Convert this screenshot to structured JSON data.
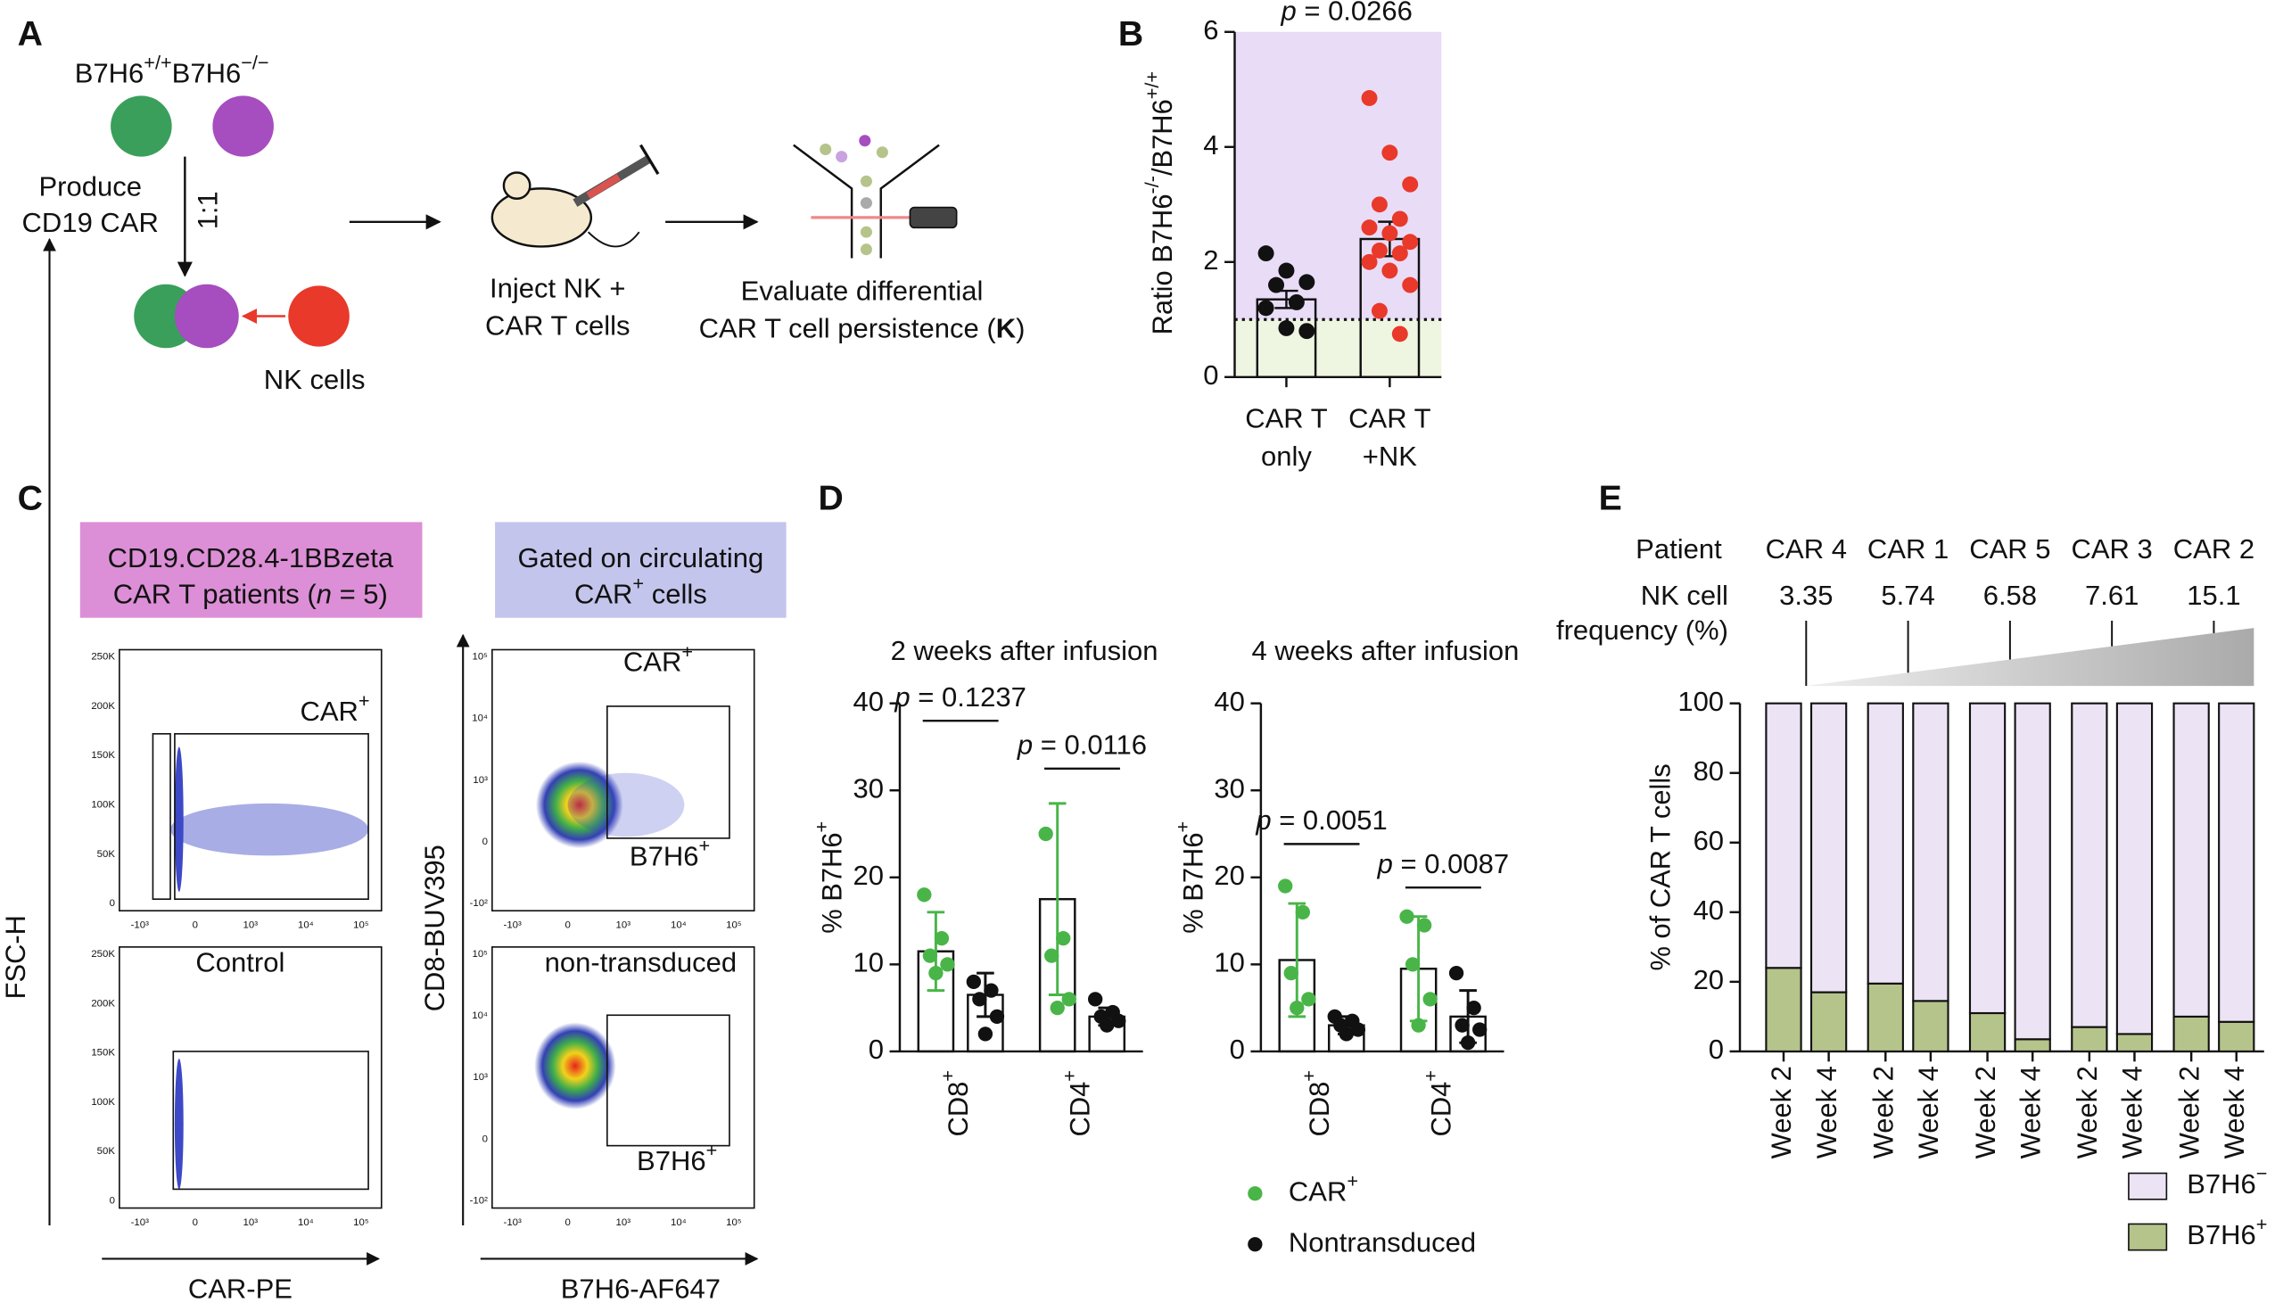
{
  "panel_labels": [
    "A",
    "B",
    "C",
    "D",
    "E"
  ],
  "diagram": {
    "genotypes": [
      {
        "t": "B7H6"
      },
      {
        "t": "+/+",
        "sup": true
      },
      {
        "t": "B7H6"
      },
      {
        "t": "−/−",
        "sup": true
      }
    ],
    "produce": [
      "Produce",
      "CD19 CAR"
    ],
    "ratio": "1:1",
    "nk": "NK cells",
    "inject": [
      "Inject NK +",
      "CAR T cells"
    ],
    "evaluate": [
      [
        {
          "t": "Evaluate differential"
        }
      ],
      [
        {
          "t": "CAR T cell persistence ("
        },
        {
          "t": "K",
          "b": true
        },
        {
          "t": ")"
        }
      ]
    ]
  },
  "flow": {
    "headers": [
      [
        "CD19.CD28.4-1BBzeta",
        [
          {
            "t": "CAR T patients ("
          },
          {
            "t": "n",
            "i": true
          },
          {
            "t": " = 5)"
          }
        ]
      ],
      [
        "Gated on circulating",
        [
          {
            "t": "CAR"
          },
          {
            "t": "+",
            "sup": true
          },
          {
            "t": " cells"
          }
        ]
      ]
    ],
    "axes": {
      "left_y": "FSC-H",
      "left_x": "CAR-PE",
      "right_y": "CD8-BUV395",
      "right_x": "B7H6-AF647"
    },
    "plot_labels": [
      [
        {
          "t": "CAR"
        },
        {
          "t": "+",
          "sup": true
        }
      ],
      "Control",
      [
        {
          "t": "CAR"
        },
        {
          "t": "+",
          "sup": true
        }
      ],
      [
        {
          "t": "B7H6"
        },
        {
          "t": "+",
          "sup": true
        }
      ],
      "non-transduced",
      [
        {
          "t": "B7H6"
        },
        {
          "t": "+",
          "sup": true
        }
      ]
    ],
    "left_yticks": [
      "250K",
      "200K",
      "150K",
      "100K",
      "50K",
      "0"
    ],
    "xticks": [
      "-10³",
      "0",
      "10³",
      "10⁴",
      "10⁵"
    ],
    "right_yticks": [
      "10⁵",
      "10⁴",
      "10³",
      "0",
      "-10²"
    ]
  },
  "chart_data": [
    {
      "type": "bar-points",
      "ylabel": [
        {
          "t": "Ratio B7H6"
        },
        {
          "t": "-/-",
          "sup": true
        },
        {
          "t": "/B7H6"
        },
        {
          "t": "+/+",
          "sup": true
        }
      ],
      "annotation": [
        {
          "t": "p",
          "i": true
        },
        {
          "t": " = 0.0266"
        }
      ],
      "categories": [
        [
          "CAR T",
          "only"
        ],
        [
          "CAR T",
          "+NK"
        ]
      ],
      "values": [
        1.35,
        2.4
      ],
      "errors": [
        0.15,
        0.3
      ],
      "points": [
        [
          2.15,
          1.85,
          1.65,
          1.6,
          1.3,
          1.2,
          0.85,
          0.8
        ],
        [
          4.85,
          3.9,
          3.35,
          3.0,
          2.75,
          2.6,
          2.5,
          2.35,
          2.2,
          2.15,
          2.0,
          1.85,
          1.6,
          1.15,
          0.75
        ]
      ],
      "point_colors": [
        "#111111",
        "#e8392b"
      ],
      "threshold": 1,
      "band_colors": [
        "#eef6e2",
        "#e9dcf7"
      ],
      "ylim": [
        0,
        6
      ],
      "yticks": [
        0,
        2,
        4,
        6
      ]
    },
    {
      "type": "grouped-bar-points",
      "title": "2 weeks after infusion",
      "ylabel": [
        {
          "t": "% B7H6"
        },
        {
          "t": "+",
          "sup": true
        }
      ],
      "categories": [
        [
          {
            "t": "CD8"
          },
          {
            "t": "+",
            "sup": true
          }
        ],
        [
          {
            "t": "CD4"
          },
          {
            "t": "+",
            "sup": true
          }
        ]
      ],
      "p_values": [
        [
          {
            "t": "p",
            "i": true
          },
          {
            "t": " = 0.1237"
          }
        ],
        [
          {
            "t": "p",
            "i": true
          },
          {
            "t": " = 0.0116"
          }
        ]
      ],
      "series": [
        {
          "name": [
            {
              "t": "CAR"
            },
            {
              "t": "+",
              "sup": true
            }
          ],
          "color": "#49b548",
          "values": [
            11.5,
            17.5
          ],
          "errors": [
            4.5,
            11
          ],
          "points": [
            [
              18,
              13,
              11,
              10,
              9
            ],
            [
              25,
              13,
              11,
              6,
              5
            ]
          ]
        },
        {
          "name": "Nontransduced",
          "color": "#111111",
          "values": [
            6.5,
            4
          ],
          "errors": [
            2.5,
            1
          ],
          "points": [
            [
              8,
              7,
              6,
              4,
              2
            ],
            [
              6,
              4.5,
              4,
              3.5,
              3
            ]
          ]
        }
      ],
      "ylim": [
        0,
        40
      ],
      "yticks": [
        0,
        10,
        20,
        30,
        40
      ]
    },
    {
      "type": "grouped-bar-points",
      "title": "4 weeks after infusion",
      "ylabel": [
        {
          "t": "% B7H6"
        },
        {
          "t": "+",
          "sup": true
        }
      ],
      "categories": [
        [
          {
            "t": "CD8"
          },
          {
            "t": "+",
            "sup": true
          }
        ],
        [
          {
            "t": "CD4"
          },
          {
            "t": "+",
            "sup": true
          }
        ]
      ],
      "p_values": [
        [
          {
            "t": "p",
            "i": true
          },
          {
            "t": " = 0.0051"
          }
        ],
        [
          {
            "t": "p",
            "i": true
          },
          {
            "t": " = 0.0087"
          }
        ]
      ],
      "series": [
        {
          "color": "#49b548",
          "values": [
            10.5,
            9.5
          ],
          "errors": [
            6.5,
            6
          ],
          "points": [
            [
              19,
              16,
              9,
              6,
              5
            ],
            [
              15.5,
              14.5,
              10,
              6,
              3
            ]
          ]
        },
        {
          "color": "#111111",
          "values": [
            3,
            4
          ],
          "errors": [
            1,
            3
          ],
          "points": [
            [
              4,
              3.5,
              3,
              2.5,
              2
            ],
            [
              9,
              5,
              3,
              2.5,
              1
            ]
          ]
        }
      ],
      "ylim": [
        0,
        40
      ],
      "yticks": [
        0,
        10,
        20,
        30,
        40
      ]
    },
    {
      "type": "stacked-bar",
      "ylabel": "% of CAR T cells",
      "row_labels": {
        "patient": "Patient",
        "nk": [
          "NK cell",
          "frequency (%)"
        ]
      },
      "groups": [
        "CAR 4",
        "CAR 1",
        "CAR 5",
        "CAR 3",
        "CAR 2"
      ],
      "nk_frequency": [
        3.35,
        5.74,
        6.58,
        7.61,
        15.1
      ],
      "categories": [
        "Week 2",
        "Week 4",
        "Week 2",
        "Week 4",
        "Week 2",
        "Week 4",
        "Week 2",
        "Week 4",
        "Week 2",
        "Week 4"
      ],
      "series": [
        {
          "name": [
            {
              "t": "B7H6"
            },
            {
              "t": "−",
              "sup": true
            }
          ],
          "color": "#ece3f5",
          "values": [
            76,
            83,
            80.5,
            85.5,
            89,
            96.5,
            93,
            95,
            90,
            91.5
          ]
        },
        {
          "name": [
            {
              "t": "B7H6"
            },
            {
              "t": "+",
              "sup": true
            }
          ],
          "color": "#b5c48a",
          "values": [
            24,
            17,
            19.5,
            14.5,
            11,
            3.5,
            7,
            5,
            10,
            8.5
          ]
        }
      ],
      "ylim": [
        0,
        100
      ],
      "yticks": [
        0,
        20,
        40,
        60,
        80,
        100
      ]
    }
  ]
}
